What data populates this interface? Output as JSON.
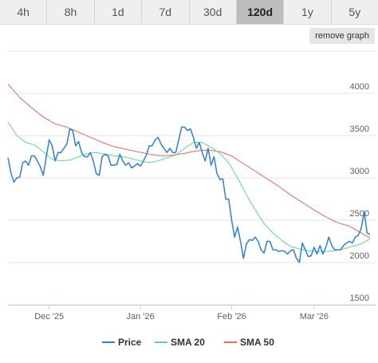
{
  "range_tabs": [
    {
      "label": "4h",
      "active": false
    },
    {
      "label": "8h",
      "active": false
    },
    {
      "label": "1d",
      "active": false
    },
    {
      "label": "7d",
      "active": false
    },
    {
      "label": "30d",
      "active": false
    },
    {
      "label": "120d",
      "active": true
    },
    {
      "label": "1y",
      "active": false
    },
    {
      "label": "5y",
      "active": false
    }
  ],
  "remove_graph_label": "remove graph",
  "chart_data": {
    "type": "line",
    "title": "",
    "xlabel": "",
    "ylabel": "",
    "ylim": [
      1500,
      4500
    ],
    "xlim": [
      "2025-11-17",
      "2026-03-20"
    ],
    "y_ticks": [
      1500,
      2000,
      2500,
      3000,
      3500,
      4000
    ],
    "y_tick_labels": [
      "1500",
      "2000",
      "2500",
      "3000",
      "3500",
      "4000"
    ],
    "y_axis_position": "right",
    "x_ticks": [
      {
        "label": "Dec '25",
        "date": "2025-12-01"
      },
      {
        "label": "Jan '26",
        "date": "2026-01-01"
      },
      {
        "label": "Feb '26",
        "date": "2026-02-01"
      },
      {
        "label": "Mar '26",
        "date": "2026-03-01"
      }
    ],
    "grid": "horizontal",
    "legend_position": "bottom",
    "series": [
      {
        "name": "Price",
        "color": "#2f7ed8",
        "points": [
          [
            "2025-11-17",
            3240
          ],
          [
            "2025-11-18",
            3060
          ],
          [
            "2025-11-19",
            2950
          ],
          [
            "2025-11-20",
            3000
          ],
          [
            "2025-11-21",
            3010
          ],
          [
            "2025-11-22",
            3180
          ],
          [
            "2025-11-23",
            3200
          ],
          [
            "2025-11-24",
            3150
          ],
          [
            "2025-11-25",
            3260
          ],
          [
            "2025-11-26",
            3260
          ],
          [
            "2025-11-27",
            3200
          ],
          [
            "2025-11-28",
            3130
          ],
          [
            "2025-11-29",
            3030
          ],
          [
            "2025-11-30",
            3250
          ],
          [
            "2025-12-01",
            3450
          ],
          [
            "2025-12-02",
            3380
          ],
          [
            "2025-12-03",
            3200
          ],
          [
            "2025-12-04",
            3300
          ],
          [
            "2025-12-05",
            3300
          ],
          [
            "2025-12-06",
            3350
          ],
          [
            "2025-12-07",
            3400
          ],
          [
            "2025-12-08",
            3580
          ],
          [
            "2025-12-09",
            3560
          ],
          [
            "2025-12-10",
            3380
          ],
          [
            "2025-12-11",
            3430
          ],
          [
            "2025-12-12",
            3300
          ],
          [
            "2025-12-13",
            3250
          ],
          [
            "2025-12-14",
            3250
          ],
          [
            "2025-12-15",
            3300
          ],
          [
            "2025-12-16",
            3200
          ],
          [
            "2025-12-17",
            3050
          ],
          [
            "2025-12-18",
            3030
          ],
          [
            "2025-12-19",
            3250
          ],
          [
            "2025-12-20",
            3280
          ],
          [
            "2025-12-21",
            3260
          ],
          [
            "2025-12-22",
            3150
          ],
          [
            "2025-12-23",
            3150
          ],
          [
            "2025-12-24",
            3160
          ],
          [
            "2025-12-25",
            3280
          ],
          [
            "2025-12-26",
            3200
          ],
          [
            "2025-12-27",
            3150
          ],
          [
            "2025-12-28",
            3180
          ],
          [
            "2025-12-29",
            3120
          ],
          [
            "2025-12-30",
            3140
          ],
          [
            "2025-12-31",
            3170
          ],
          [
            "2026-01-01",
            3140
          ],
          [
            "2026-01-02",
            3200
          ],
          [
            "2026-01-03",
            3270
          ],
          [
            "2026-01-04",
            3380
          ],
          [
            "2026-01-05",
            3380
          ],
          [
            "2026-01-06",
            3450
          ],
          [
            "2026-01-07",
            3480
          ],
          [
            "2026-01-08",
            3400
          ],
          [
            "2026-01-09",
            3350
          ],
          [
            "2026-01-10",
            3300
          ],
          [
            "2026-01-11",
            3350
          ],
          [
            "2026-01-12",
            3300
          ],
          [
            "2026-01-13",
            3300
          ],
          [
            "2026-01-14",
            3450
          ],
          [
            "2026-01-15",
            3600
          ],
          [
            "2026-01-16",
            3600
          ],
          [
            "2026-01-17",
            3560
          ],
          [
            "2026-01-18",
            3580
          ],
          [
            "2026-01-19",
            3480
          ],
          [
            "2026-01-20",
            3350
          ],
          [
            "2026-01-21",
            3420
          ],
          [
            "2026-01-22",
            3300
          ],
          [
            "2026-01-23",
            3200
          ],
          [
            "2026-01-24",
            3350
          ],
          [
            "2026-01-25",
            3150
          ],
          [
            "2026-01-26",
            3250
          ],
          [
            "2026-01-27",
            3050
          ],
          [
            "2026-01-28",
            2980
          ],
          [
            "2026-01-29",
            2990
          ],
          [
            "2026-01-30",
            2750
          ],
          [
            "2026-01-31",
            2750
          ],
          [
            "2026-02-01",
            2500
          ],
          [
            "2026-02-02",
            2300
          ],
          [
            "2026-02-03",
            2420
          ],
          [
            "2026-02-04",
            2250
          ],
          [
            "2026-02-05",
            2050
          ],
          [
            "2026-02-06",
            2220
          ],
          [
            "2026-02-07",
            2270
          ],
          [
            "2026-02-08",
            2260
          ],
          [
            "2026-02-09",
            2300
          ],
          [
            "2026-02-10",
            2250
          ],
          [
            "2026-02-11",
            2150
          ],
          [
            "2026-02-12",
            2110
          ],
          [
            "2026-02-13",
            2250
          ],
          [
            "2026-02-14",
            2250
          ],
          [
            "2026-02-15",
            2150
          ],
          [
            "2026-02-16",
            2150
          ],
          [
            "2026-02-17",
            2130
          ],
          [
            "2026-02-18",
            2140
          ],
          [
            "2026-02-19",
            2130
          ],
          [
            "2026-02-20",
            2100
          ],
          [
            "2026-02-21",
            2140
          ],
          [
            "2026-02-22",
            2150
          ],
          [
            "2026-02-23",
            2050
          ],
          [
            "2026-02-24",
            2000
          ],
          [
            "2026-02-25",
            2230
          ],
          [
            "2026-02-26",
            2150
          ],
          [
            "2026-02-27",
            2070
          ],
          [
            "2026-02-28",
            2080
          ],
          [
            "2026-03-01",
            2180
          ],
          [
            "2026-03-02",
            2100
          ],
          [
            "2026-03-03",
            2200
          ],
          [
            "2026-03-04",
            2100
          ],
          [
            "2026-03-05",
            2180
          ],
          [
            "2026-03-06",
            2300
          ],
          [
            "2026-03-07",
            2200
          ],
          [
            "2026-03-08",
            2150
          ],
          [
            "2026-03-09",
            2150
          ],
          [
            "2026-03-10",
            2150
          ],
          [
            "2026-03-11",
            2200
          ],
          [
            "2026-03-12",
            2230
          ],
          [
            "2026-03-13",
            2250
          ],
          [
            "2026-03-14",
            2230
          ],
          [
            "2026-03-15",
            2300
          ],
          [
            "2026-03-16",
            2320
          ],
          [
            "2026-03-17",
            2400
          ],
          [
            "2026-03-18",
            2600
          ],
          [
            "2026-03-19",
            2350
          ],
          [
            "2026-03-20",
            2330
          ]
        ]
      },
      {
        "name": "SMA 20",
        "color": "#5ed68f",
        "points": [
          [
            "2025-11-17",
            3660
          ],
          [
            "2025-11-20",
            3500
          ],
          [
            "2025-11-23",
            3420
          ],
          [
            "2025-11-26",
            3390
          ],
          [
            "2025-11-29",
            3310
          ],
          [
            "2025-12-02",
            3220
          ],
          [
            "2025-12-05",
            3200
          ],
          [
            "2025-12-08",
            3210
          ],
          [
            "2025-12-11",
            3250
          ],
          [
            "2025-12-14",
            3290
          ],
          [
            "2025-12-17",
            3300
          ],
          [
            "2025-12-20",
            3280
          ],
          [
            "2025-12-23",
            3260
          ],
          [
            "2025-12-26",
            3250
          ],
          [
            "2025-12-29",
            3230
          ],
          [
            "2026-01-01",
            3200
          ],
          [
            "2026-01-04",
            3180
          ],
          [
            "2026-01-07",
            3200
          ],
          [
            "2026-01-10",
            3240
          ],
          [
            "2026-01-13",
            3270
          ],
          [
            "2026-01-16",
            3350
          ],
          [
            "2026-01-19",
            3420
          ],
          [
            "2026-01-22",
            3420
          ],
          [
            "2026-01-25",
            3360
          ],
          [
            "2026-01-28",
            3290
          ],
          [
            "2026-01-31",
            3180
          ],
          [
            "2026-02-03",
            3000
          ],
          [
            "2026-02-06",
            2800
          ],
          [
            "2026-02-09",
            2620
          ],
          [
            "2026-02-12",
            2460
          ],
          [
            "2026-02-15",
            2350
          ],
          [
            "2026-02-18",
            2260
          ],
          [
            "2026-02-21",
            2190
          ],
          [
            "2026-02-24",
            2160
          ],
          [
            "2026-02-27",
            2140
          ],
          [
            "2026-03-02",
            2130
          ],
          [
            "2026-03-05",
            2130
          ],
          [
            "2026-03-08",
            2140
          ],
          [
            "2026-03-11",
            2160
          ],
          [
            "2026-03-14",
            2190
          ],
          [
            "2026-03-17",
            2220
          ],
          [
            "2026-03-20",
            2280
          ]
        ]
      },
      {
        "name": "SMA 50",
        "color": "#e06a5a",
        "points": [
          [
            "2025-11-17",
            4110
          ],
          [
            "2025-11-21",
            3950
          ],
          [
            "2025-11-25",
            3830
          ],
          [
            "2025-11-29",
            3720
          ],
          [
            "2025-12-03",
            3640
          ],
          [
            "2025-12-07",
            3600
          ],
          [
            "2025-12-11",
            3540
          ],
          [
            "2025-12-15",
            3480
          ],
          [
            "2025-12-19",
            3420
          ],
          [
            "2025-12-23",
            3370
          ],
          [
            "2025-12-27",
            3340
          ],
          [
            "2025-12-31",
            3310
          ],
          [
            "2026-01-04",
            3280
          ],
          [
            "2026-01-08",
            3260
          ],
          [
            "2026-01-12",
            3270
          ],
          [
            "2026-01-16",
            3290
          ],
          [
            "2026-01-20",
            3320
          ],
          [
            "2026-01-24",
            3330
          ],
          [
            "2026-01-28",
            3310
          ],
          [
            "2026-02-01",
            3260
          ],
          [
            "2026-02-05",
            3170
          ],
          [
            "2026-02-09",
            3080
          ],
          [
            "2026-02-13",
            2990
          ],
          [
            "2026-02-17",
            2900
          ],
          [
            "2026-02-21",
            2800
          ],
          [
            "2026-02-25",
            2710
          ],
          [
            "2026-03-01",
            2620
          ],
          [
            "2026-03-05",
            2540
          ],
          [
            "2026-03-09",
            2470
          ],
          [
            "2026-03-13",
            2430
          ],
          [
            "2026-03-17",
            2350
          ],
          [
            "2026-03-20",
            2290
          ]
        ]
      }
    ]
  }
}
